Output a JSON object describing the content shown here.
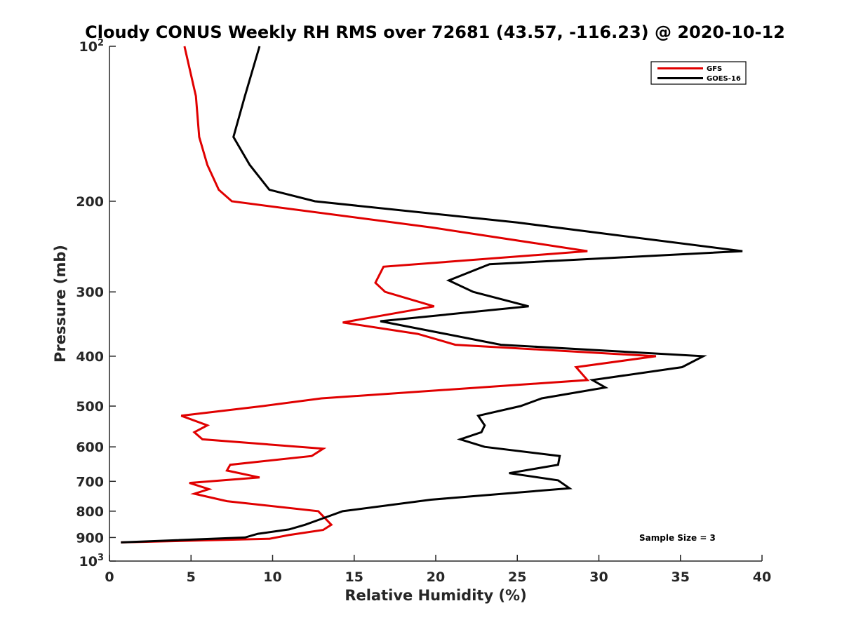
{
  "chart_data": {
    "type": "line",
    "title": "Cloudy CONUS Weekly RH RMS over 72681 (43.57, -116.23) @ 2020-10-12",
    "xlabel": "Relative Humidity (%)",
    "ylabel": "Pressure (mb)",
    "xlim": [
      0,
      40
    ],
    "ylim": [
      100,
      1000
    ],
    "y_scale": "log",
    "y_reversed": true,
    "grid": false,
    "legend_position": "top-right",
    "x_ticks": [
      0,
      5,
      10,
      15,
      20,
      25,
      30,
      35,
      40
    ],
    "x_tick_labels": [
      "0",
      "5",
      "10",
      "15",
      "20",
      "25",
      "30",
      "35",
      "40"
    ],
    "y_ticks": [
      {
        "value": 100,
        "base": "10",
        "exp": "2"
      },
      {
        "value": 200,
        "label": "200"
      },
      {
        "value": 300,
        "label": "300"
      },
      {
        "value": 400,
        "label": "400"
      },
      {
        "value": 500,
        "label": "500"
      },
      {
        "value": 600,
        "label": "600"
      },
      {
        "value": 700,
        "label": "700"
      },
      {
        "value": 800,
        "label": "800"
      },
      {
        "value": 900,
        "label": "900"
      },
      {
        "value": 1000,
        "base": "10",
        "exp": "3"
      }
    ],
    "series": [
      {
        "name": "GFS",
        "color": "#e00000",
        "points": [
          [
            4.6,
            100
          ],
          [
            5.3,
            125
          ],
          [
            5.5,
            150
          ],
          [
            6.0,
            170
          ],
          [
            6.7,
            190
          ],
          [
            7.5,
            200
          ],
          [
            19.8,
            225
          ],
          [
            29.3,
            250
          ],
          [
            16.8,
            268
          ],
          [
            16.3,
            288
          ],
          [
            16.9,
            300
          ],
          [
            19.9,
            320
          ],
          [
            14.3,
            344
          ],
          [
            18.9,
            362
          ],
          [
            21.2,
            380
          ],
          [
            33.5,
            400
          ],
          [
            28.6,
            420
          ],
          [
            29.3,
            445
          ],
          [
            13.0,
            483
          ],
          [
            9.4,
            500
          ],
          [
            4.4,
            522
          ],
          [
            6.0,
            545
          ],
          [
            5.2,
            562
          ],
          [
            5.7,
            580
          ],
          [
            13.1,
            605
          ],
          [
            12.4,
            625
          ],
          [
            7.4,
            650
          ],
          [
            7.2,
            667
          ],
          [
            9.2,
            688
          ],
          [
            4.9,
            705
          ],
          [
            6.1,
            725
          ],
          [
            5.2,
            740
          ],
          [
            7.2,
            765
          ],
          [
            12.8,
            800
          ],
          [
            13.6,
            850
          ],
          [
            13.1,
            870
          ],
          [
            11.0,
            890
          ],
          [
            9.8,
            905
          ],
          [
            0.7,
            920
          ]
        ]
      },
      {
        "name": "GOES-16",
        "color": "#000000",
        "points": [
          [
            9.2,
            100
          ],
          [
            8.3,
            125
          ],
          [
            7.6,
            150
          ],
          [
            8.6,
            170
          ],
          [
            9.8,
            190
          ],
          [
            12.6,
            200
          ],
          [
            25.0,
            220
          ],
          [
            38.8,
            250
          ],
          [
            23.3,
            265
          ],
          [
            20.8,
            285
          ],
          [
            22.3,
            300
          ],
          [
            25.7,
            320
          ],
          [
            16.6,
            342
          ],
          [
            20.6,
            362
          ],
          [
            24.0,
            380
          ],
          [
            36.4,
            400
          ],
          [
            35.1,
            420
          ],
          [
            29.6,
            445
          ],
          [
            30.4,
            460
          ],
          [
            26.5,
            483
          ],
          [
            25.2,
            500
          ],
          [
            22.6,
            522
          ],
          [
            23.0,
            545
          ],
          [
            22.8,
            562
          ],
          [
            21.5,
            580
          ],
          [
            23.0,
            600
          ],
          [
            27.6,
            625
          ],
          [
            27.5,
            650
          ],
          [
            24.5,
            675
          ],
          [
            27.5,
            697
          ],
          [
            28.2,
            722
          ],
          [
            19.7,
            760
          ],
          [
            14.3,
            800
          ],
          [
            12.9,
            830
          ],
          [
            12.0,
            850
          ],
          [
            11.0,
            868
          ],
          [
            9.1,
            885
          ],
          [
            8.3,
            900
          ],
          [
            0.7,
            920
          ]
        ]
      }
    ],
    "annotations": [
      {
        "text": "Sample Size = 3",
        "x": 34.4,
        "y": 900
      }
    ]
  }
}
